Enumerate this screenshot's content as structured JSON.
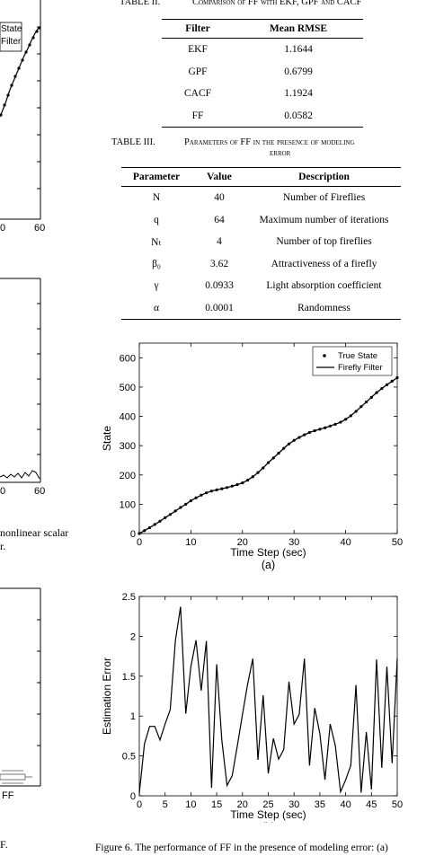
{
  "table2": {
    "caption_num": "TABLE II.",
    "caption_text": "Comparison of FF with EKF, GPF and CACF",
    "headers": [
      "Filter",
      "Mean RMSE"
    ],
    "rows": [
      [
        "EKF",
        "1.1644"
      ],
      [
        "GPF",
        "0.6799"
      ],
      [
        "CACF",
        "1.1924"
      ],
      [
        "FF",
        "0.0582"
      ]
    ]
  },
  "table3": {
    "caption_num": "TABLE III.",
    "caption_line1": "Parameters of FF in the presence of modeling",
    "caption_line2": "error",
    "headers": [
      "Parameter",
      "Value",
      "Description"
    ],
    "rows": [
      [
        "N",
        "40",
        "Number of Fireflies"
      ],
      [
        "q",
        "64",
        "Maximum number of iterations"
      ],
      [
        "Nₜ",
        "4",
        "Number of top fireflies"
      ],
      [
        "β₀",
        "3.62",
        "Attractiveness of a firefly"
      ],
      [
        "γ",
        "0.0933",
        "Light absorption coefficient"
      ],
      [
        "α",
        "0.0001",
        "Randomness"
      ]
    ]
  },
  "left_column": {
    "legend_state": "State",
    "legend_filter": "Filter",
    "axis_tick_0": "0",
    "axis_tick_60": "60",
    "axis_tick_0b": "0",
    "axis_tick_60b": "60",
    "text_line1": "nonlinear scalar",
    "text_line2": "r.",
    "bar_label": "FF",
    "bottom_text": "F."
  },
  "figure_caption": "Figure 6.   The performance of FF in the presence of modeling error: (a)",
  "chart_data": [
    {
      "type": "line",
      "ylabel": "State",
      "xlabel": "Time Step (sec)",
      "sublabel": "(a)",
      "xlim": [
        0,
        50
      ],
      "ylim": [
        0,
        650
      ],
      "xticks": [
        0,
        10,
        20,
        30,
        40,
        50
      ],
      "yticks": [
        0,
        100,
        200,
        300,
        400,
        500,
        600
      ],
      "legend": "top-right",
      "series": [
        {
          "name": "True State",
          "style": "markers",
          "x": [
            0,
            1,
            2,
            3,
            4,
            5,
            6,
            7,
            8,
            9,
            10,
            11,
            12,
            13,
            14,
            15,
            16,
            17,
            18,
            19,
            20,
            21,
            22,
            23,
            24,
            25,
            26,
            27,
            28,
            29,
            30,
            31,
            32,
            33,
            34,
            35,
            36,
            37,
            38,
            39,
            40,
            41,
            42,
            43,
            44,
            45,
            46,
            47,
            48,
            49,
            50
          ],
          "y": [
            0,
            10,
            20,
            31,
            42,
            54,
            65,
            77,
            89,
            100,
            112,
            122,
            131,
            139,
            145,
            149,
            153,
            157,
            162,
            167,
            173,
            182,
            194,
            208,
            224,
            242,
            258,
            274,
            291,
            306,
            318,
            328,
            337,
            345,
            351,
            356,
            361,
            367,
            373,
            380,
            390,
            402,
            417,
            433,
            449,
            465,
            481,
            495,
            508,
            520,
            532
          ]
        },
        {
          "name": "Firefly Filter",
          "style": "line",
          "x": [
            0,
            1,
            2,
            3,
            4,
            5,
            6,
            7,
            8,
            9,
            10,
            11,
            12,
            13,
            14,
            15,
            16,
            17,
            18,
            19,
            20,
            21,
            22,
            23,
            24,
            25,
            26,
            27,
            28,
            29,
            30,
            31,
            32,
            33,
            34,
            35,
            36,
            37,
            38,
            39,
            40,
            41,
            42,
            43,
            44,
            45,
            46,
            47,
            48,
            49,
            50
          ],
          "y": [
            0,
            10,
            20,
            31,
            42,
            54,
            65,
            77,
            89,
            100,
            112,
            122,
            131,
            139,
            145,
            149,
            153,
            157,
            162,
            167,
            173,
            182,
            194,
            208,
            224,
            242,
            258,
            274,
            291,
            306,
            318,
            328,
            337,
            345,
            351,
            356,
            361,
            367,
            373,
            380,
            390,
            402,
            417,
            433,
            449,
            465,
            481,
            495,
            508,
            520,
            532
          ]
        }
      ]
    },
    {
      "type": "line",
      "ylabel": "Estimation Error",
      "xlabel": "Time Step (sec)",
      "sublabel": "(b)",
      "xlim": [
        0,
        50
      ],
      "ylim": [
        0,
        2.5
      ],
      "xticks": [
        0,
        5,
        10,
        15,
        20,
        25,
        30,
        35,
        40,
        45,
        50
      ],
      "yticks": [
        0,
        0.5,
        1,
        1.5,
        2,
        2.5
      ],
      "series": [
        {
          "name": "",
          "x": [
            0,
            1,
            2,
            3,
            4,
            5,
            6,
            7,
            8,
            9,
            10,
            11,
            12,
            13,
            14,
            15,
            16,
            17,
            18,
            19,
            20,
            21,
            22,
            23,
            24,
            25,
            26,
            27,
            28,
            29,
            30,
            31,
            32,
            33,
            34,
            35,
            36,
            37,
            38,
            39,
            40,
            41,
            42,
            43,
            44,
            45,
            46,
            47,
            48,
            49,
            50
          ],
          "y": [
            0.03,
            0.65,
            0.87,
            0.87,
            0.7,
            0.9,
            1.08,
            1.95,
            2.37,
            1.03,
            1.62,
            1.95,
            1.32,
            1.94,
            0.1,
            1.65,
            0.7,
            0.13,
            0.25,
            0.63,
            1.02,
            1.4,
            1.72,
            0.45,
            1.26,
            0.28,
            0.72,
            0.46,
            0.58,
            1.43,
            0.9,
            1.02,
            1.72,
            0.38,
            1.1,
            0.78,
            0.2,
            0.9,
            0.63,
            0.05,
            0.2,
            0.38,
            1.39,
            0.04,
            0.8,
            0.08,
            1.71,
            0.35,
            1.62,
            0.41,
            1.72
          ]
        }
      ]
    }
  ]
}
